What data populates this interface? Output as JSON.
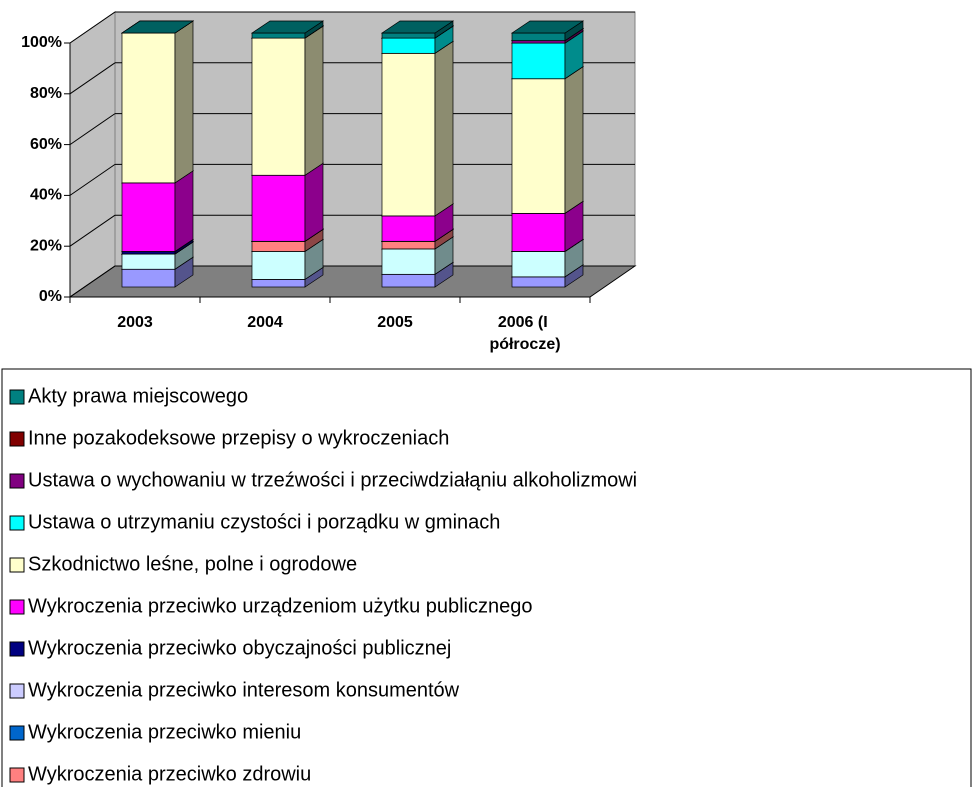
{
  "chart_data": {
    "type": "bar",
    "stacked": true,
    "three_d": true,
    "categories": [
      "2003",
      "2004",
      "2005",
      "2006 (I półrocze)"
    ],
    "ylim": [
      0,
      100
    ],
    "yticks": [
      {
        "value": 0,
        "label": "0%"
      },
      {
        "value": 20,
        "label": "20%"
      },
      {
        "value": 40,
        "label": "40%"
      },
      {
        "value": 60,
        "label": "60%"
      },
      {
        "value": 80,
        "label": "80%"
      },
      {
        "value": 100,
        "label": "100%"
      }
    ],
    "grid": true,
    "series": [
      {
        "name": "Akty prawa miejscowego",
        "color": "#008080",
        "values": [
          0,
          2,
          2,
          3
        ]
      },
      {
        "name": "Inne pozakodeksowe przepisy o wykroczeniach",
        "color": "#800000",
        "values": [
          0,
          0,
          0,
          0
        ]
      },
      {
        "name": "Ustawa o wychowaniu w trzeźwości i przeciwdziałąniu alkoholizmowi",
        "color": "#800080",
        "values": [
          0,
          0,
          0,
          1
        ]
      },
      {
        "name": "Ustawa o utrzymaniu czystości i porządku w gminach",
        "color": "#00ffff",
        "values": [
          0,
          0,
          6,
          14
        ]
      },
      {
        "name": "Szkodnictwo leśne, polne i ogrodowe",
        "color": "#ffffcc",
        "values": [
          59,
          54,
          64,
          53
        ]
      },
      {
        "name": "Wykroczenia przeciwko urządzeniom użytku publicznego",
        "color": "#ff00ff",
        "values": [
          27,
          26,
          10,
          15
        ]
      },
      {
        "name": "Wykroczenia przeciwko obyczajności publicznej",
        "color": "#000080",
        "values": [
          1,
          0,
          0,
          0
        ]
      },
      {
        "name": "Wykroczenia przeciwko interesom konsumentów",
        "color": "#ccccff",
        "values": [
          0,
          0,
          0,
          0
        ]
      },
      {
        "name": "Wykroczenia przeciwko mieniu",
        "color": "#0066cc",
        "values": [
          0,
          0,
          0,
          0
        ]
      },
      {
        "name": "Wykroczenia przeciwko zdrowiu",
        "color": "#ff8080",
        "values": [
          0,
          4,
          3,
          0
        ]
      },
      {
        "color": "#ccffff",
        "values": [
          6,
          11,
          10,
          10
        ]
      },
      {
        "color": "#9999ff",
        "values": [
          7,
          3,
          5,
          4
        ]
      }
    ]
  }
}
